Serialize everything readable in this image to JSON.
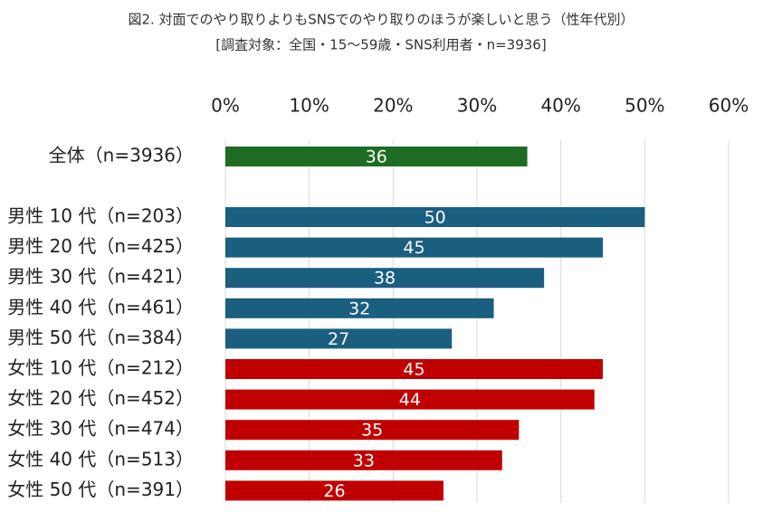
{
  "chart_data": {
    "type": "bar",
    "orientation": "horizontal",
    "title": "図2. 対面でのやり取りよりもSNSでのやり取りのほうが楽しいと思う（性年代別）",
    "subtitle": "[調査対象：全国・15～59歳・SNS利用者・n=3936]",
    "categories": [
      "全体（n=3936）",
      "男性 10 代（n=203）",
      "男性 20 代（n=425）",
      "男性 30 代（n=421）",
      "男性 40 代（n=461）",
      "男性 50 代（n=384）",
      "女性 10 代（n=212）",
      "女性 20 代（n=452）",
      "女性 30 代（n=474）",
      "女性 40 代（n=513）",
      "女性 50 代（n=391）"
    ],
    "values": [
      36,
      50,
      45,
      38,
      32,
      27,
      45,
      44,
      35,
      33,
      26
    ],
    "colors": [
      "#1e6b22",
      "#1a5e80",
      "#1a5e80",
      "#1a5e80",
      "#1a5e80",
      "#1a5e80",
      "#c00000",
      "#c00000",
      "#c00000",
      "#c00000",
      "#c00000"
    ],
    "xlim": [
      0,
      60
    ],
    "xticks": [
      {
        "value": 0,
        "label": "0%"
      },
      {
        "value": 10,
        "label": "10%"
      },
      {
        "value": 20,
        "label": "20%"
      },
      {
        "value": 30,
        "label": "30%"
      },
      {
        "value": 40,
        "label": "40%"
      },
      {
        "value": 50,
        "label": "50%"
      },
      {
        "value": 60,
        "label": "60%"
      }
    ],
    "grid": true
  }
}
